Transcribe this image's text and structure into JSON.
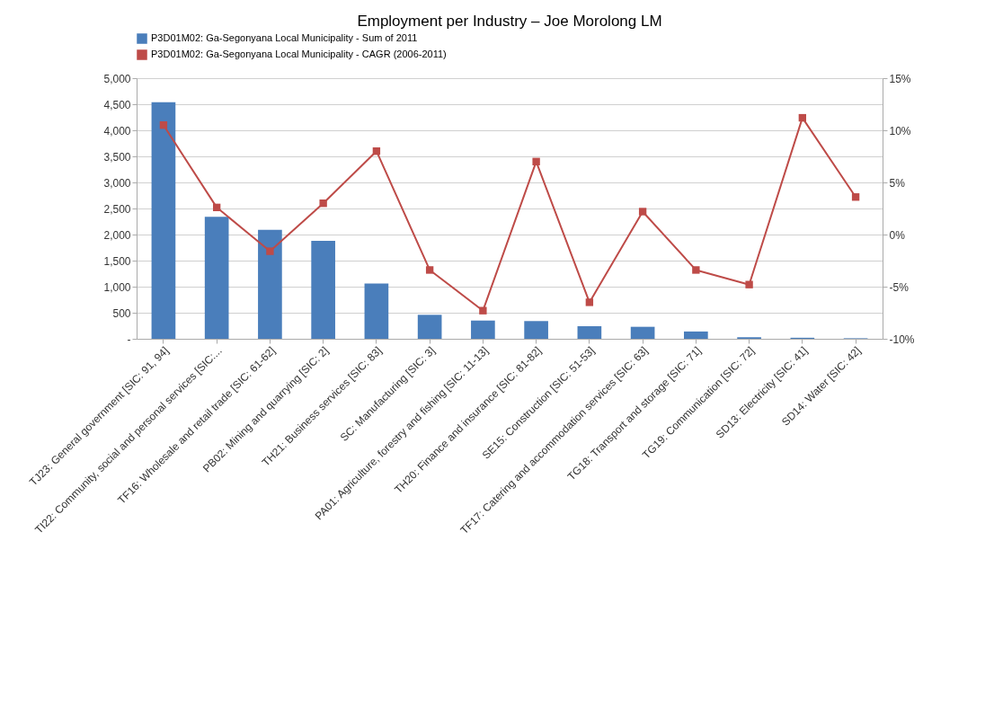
{
  "chart_data": {
    "type": "bar",
    "title": "Employment  per Industry – Joe Morolong LM",
    "categories": [
      "TJ23: General government [SIC: 91, 94]",
      "TI22: Community, social and personal services [SIC:...",
      "TF16: Wholesale and retail trade [SIC: 61-62]",
      "PB02: Mining and quarrying [SIC: 2]",
      "TH21: Business services [SIC: 83]",
      "SC: Manufacturing [SIC: 3]",
      "PA01: Agriculture, forestry and fishing [SIC: 11-13]",
      "TH20: Finance and insurance [SIC: 81-82]",
      "SE15: Construction [SIC: 51-53]",
      "TF17: Catering and accommodation services [SIC: 63]",
      "TG18: Transport and storage [SIC: 71]",
      "TG19: Communication [SIC: 72]",
      "SD13: Electricity [SIC: 41]",
      "SD14: Water [SIC: 42]"
    ],
    "series": [
      {
        "name": "P3D01M02: Ga-Segonyana Local Municipality - Sum of 2011",
        "color": "#4a7ebb",
        "values": [
          4540,
          2340,
          2090,
          1880,
          1060,
          460,
          350,
          340,
          240,
          230,
          140,
          30,
          20,
          10
        ]
      },
      {
        "name": "P3D01M02: Ga-Segonyana Local Municipality -  CAGR (2006-2011)",
        "type": "line",
        "axis": "y2",
        "color": "#be4b48",
        "marker": "square",
        "values": [
          10.5,
          2.6,
          -1.6,
          3.0,
          8.0,
          -3.4,
          -7.3,
          7.0,
          -6.5,
          2.2,
          -3.4,
          -4.8,
          11.2,
          3.6
        ]
      }
    ],
    "ylim": [
      0,
      5000
    ],
    "yticks": [
      {
        "value": 0,
        "label": "-"
      },
      {
        "value": 500,
        "label": "500"
      },
      {
        "value": 1000,
        "label": "1,000"
      },
      {
        "value": 1500,
        "label": "1,500"
      },
      {
        "value": 2000,
        "label": "2,000"
      },
      {
        "value": 2500,
        "label": "2,500"
      },
      {
        "value": 3000,
        "label": "3,000"
      },
      {
        "value": 3500,
        "label": "3,500"
      },
      {
        "value": 4000,
        "label": "4,000"
      },
      {
        "value": 4500,
        "label": "4,500"
      },
      {
        "value": 5000,
        "label": "5,000"
      }
    ],
    "y2lim": [
      -10,
      15
    ],
    "y2ticks": [
      {
        "value": -10,
        "label": "-10%"
      },
      {
        "value": -5,
        "label": "-5%"
      },
      {
        "value": 0,
        "label": "0%"
      },
      {
        "value": 5,
        "label": "5%"
      },
      {
        "value": 10,
        "label": "10%"
      },
      {
        "value": 15,
        "label": "15%"
      }
    ],
    "grid": "y",
    "legend": "top"
  }
}
